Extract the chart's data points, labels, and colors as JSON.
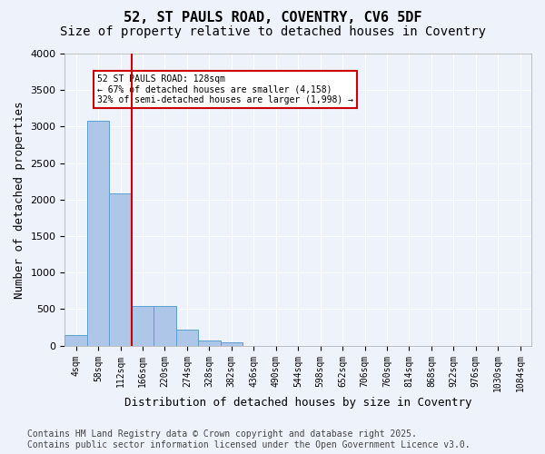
{
  "title_line1": "52, ST PAULS ROAD, COVENTRY, CV6 5DF",
  "title_line2": "Size of property relative to detached houses in Coventry",
  "xlabel": "Distribution of detached houses by size in Coventry",
  "ylabel": "Number of detached properties",
  "annotation_line1": "52 ST PAULS ROAD: 128sqm",
  "annotation_line2": "← 67% of detached houses are smaller (4,158)",
  "annotation_line3": "32% of semi-detached houses are larger (1,998) →",
  "footer_line1": "Contains HM Land Registry data © Crown copyright and database right 2025.",
  "footer_line2": "Contains public sector information licensed under the Open Government Licence v3.0.",
  "bin_labels": [
    "4sqm",
    "58sqm",
    "112sqm",
    "166sqm",
    "220sqm",
    "274sqm",
    "328sqm",
    "382sqm",
    "436sqm",
    "490sqm",
    "544sqm",
    "598sqm",
    "652sqm",
    "706sqm",
    "760sqm",
    "814sqm",
    "868sqm",
    "922sqm",
    "976sqm",
    "1030sqm",
    "1084sqm"
  ],
  "bar_values": [
    150,
    3080,
    2080,
    540,
    540,
    220,
    70,
    40,
    0,
    0,
    0,
    0,
    0,
    0,
    0,
    0,
    0,
    0,
    0,
    0,
    0
  ],
  "bar_color": "#aec6e8",
  "bar_edge_color": "#5a9fd4",
  "vline_x": 2,
  "vline_color": "#cc0000",
  "ylim": [
    0,
    4000
  ],
  "background_color": "#eef2fb",
  "plot_background": "#eef2fb",
  "grid_color": "#ffffff",
  "annotation_box_color": "#cc0000",
  "title_fontsize": 11,
  "subtitle_fontsize": 10,
  "axis_label_fontsize": 9,
  "tick_fontsize": 7,
  "footer_fontsize": 7
}
